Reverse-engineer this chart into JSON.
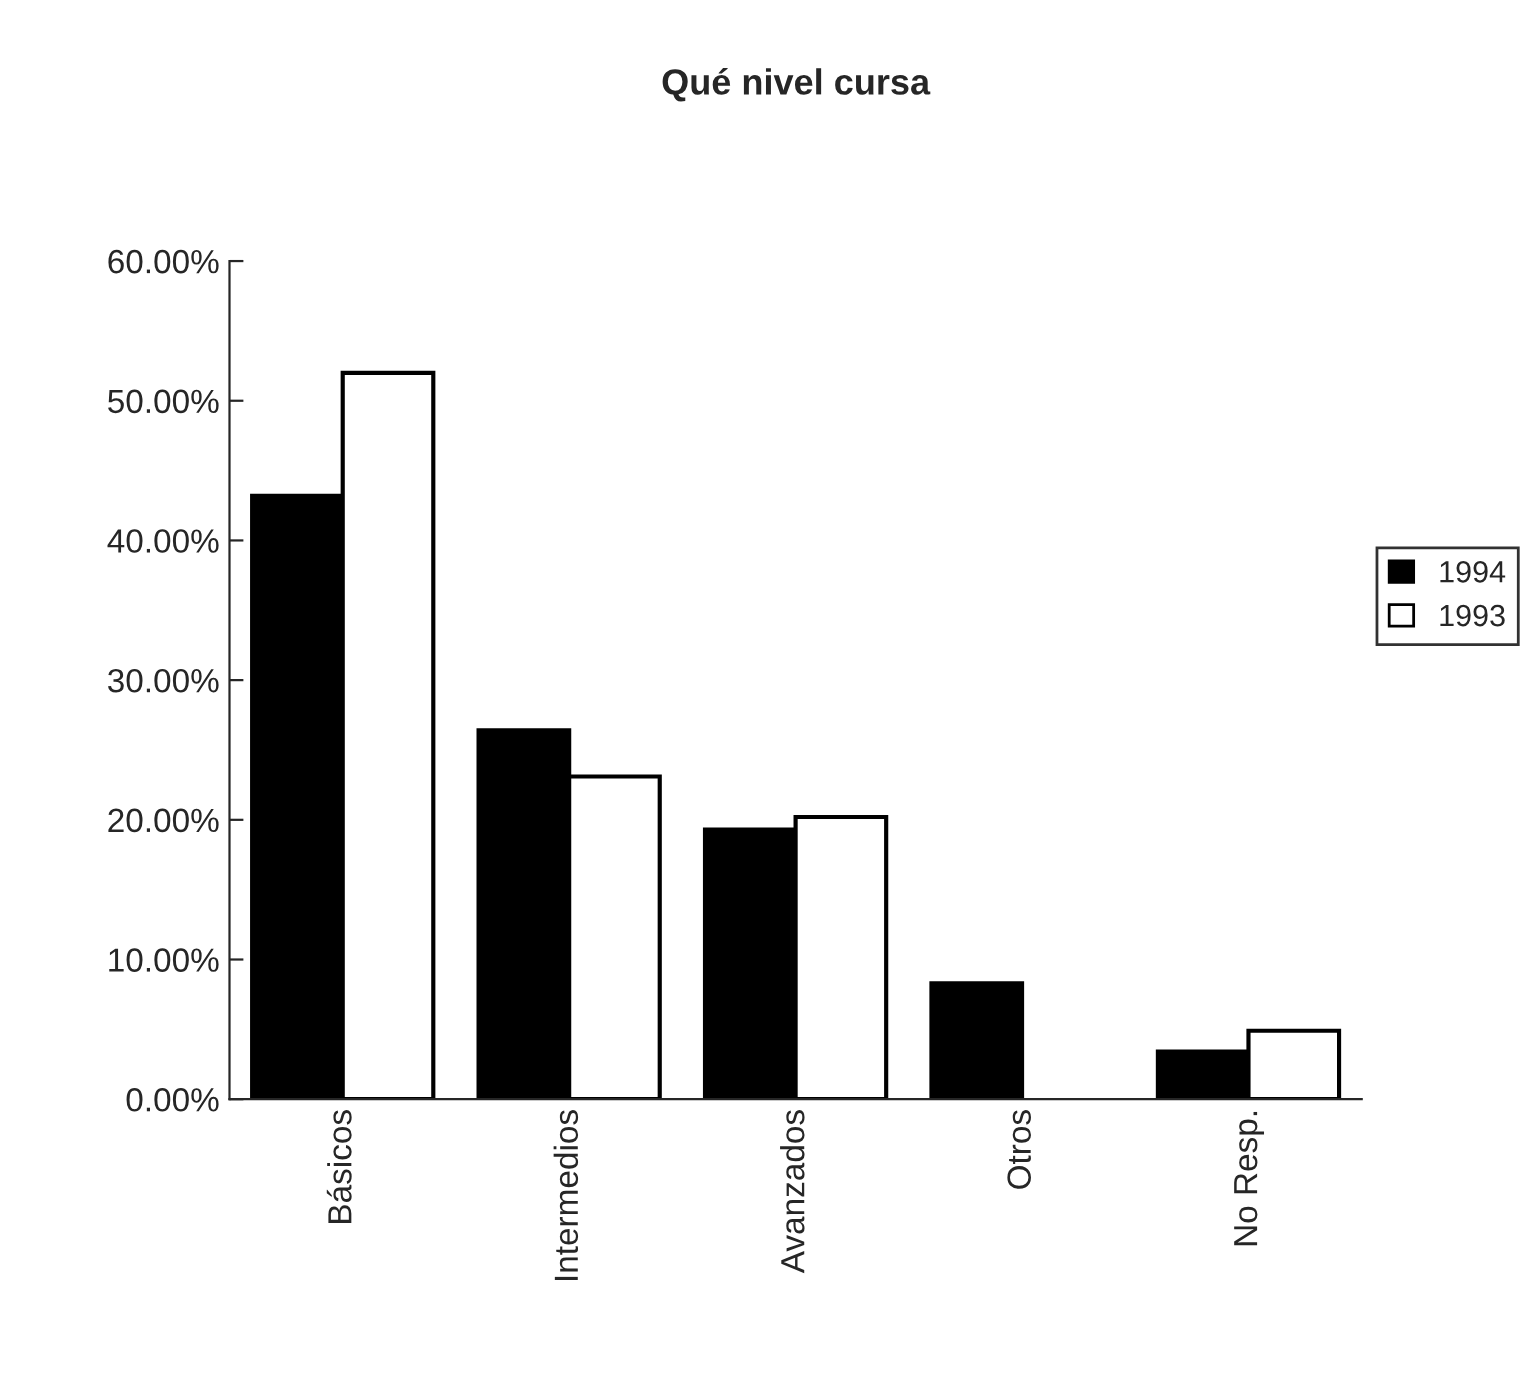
{
  "chart_data": {
    "type": "bar",
    "title": "Qué nivel cursa",
    "categories": [
      "Básicos",
      "Intermedios",
      "Avanzados",
      "Otros",
      "No Resp."
    ],
    "series": [
      {
        "name": "1994",
        "color": "#000000",
        "values": [
          43.2,
          26.4,
          19.3,
          8.3,
          3.4
        ]
      },
      {
        "name": "1993",
        "color": "#ffffff",
        "values": [
          52.0,
          23.1,
          20.2,
          null,
          4.9
        ]
      }
    ],
    "ylim": [
      0,
      60
    ],
    "yticks": [
      {
        "value": 0,
        "label": "0.00%"
      },
      {
        "value": 10,
        "label": "10.00%"
      },
      {
        "value": 20,
        "label": "20.00%"
      },
      {
        "value": 30,
        "label": "30.00%"
      },
      {
        "value": 40,
        "label": "40.00%"
      },
      {
        "value": 50,
        "label": "50.00%"
      },
      {
        "value": 60,
        "label": "60.00%"
      }
    ],
    "grid": false,
    "legend": "right"
  }
}
